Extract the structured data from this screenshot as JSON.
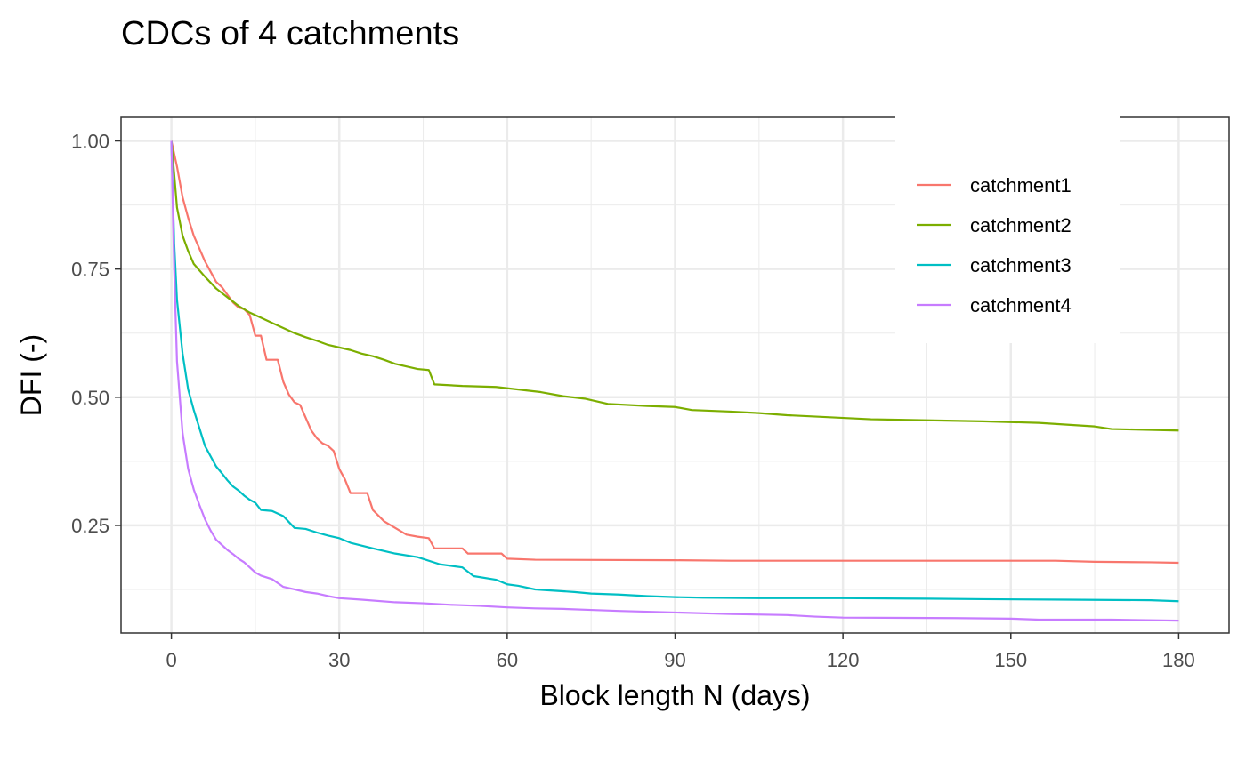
{
  "chart_data": {
    "type": "line",
    "title": "CDCs of 4 catchments",
    "xlabel": "Block length N (days)",
    "ylabel": "DFI (-)",
    "xlim": [
      -9,
      189
    ],
    "ylim": [
      0.04,
      1.046
    ],
    "xticks": [
      0,
      30,
      60,
      90,
      120,
      150,
      180
    ],
    "xtick_labels": [
      "0",
      "30",
      "60",
      "90",
      "120",
      "150",
      "180"
    ],
    "yticks": [
      0.25,
      0.5,
      0.75,
      1.0
    ],
    "ytick_labels": [
      "0.25",
      "0.50",
      "0.75",
      "1.00"
    ],
    "grid": true,
    "legend_position": "top-right inside",
    "series": [
      {
        "name": "catchment1",
        "color": "#F8766D",
        "x": [
          0,
          1,
          2,
          3,
          4,
          5,
          6,
          7,
          8,
          9,
          10,
          11,
          12,
          13,
          14,
          15,
          16,
          17,
          18,
          19,
          20,
          21,
          22,
          23,
          24,
          25,
          26,
          27,
          28,
          29,
          30,
          31,
          32,
          35,
          36,
          38,
          40,
          42,
          44,
          46,
          47,
          52,
          53,
          59,
          60,
          65,
          90,
          100,
          158,
          165,
          175,
          180
        ],
        "y": [
          1.0,
          0.95,
          0.89,
          0.85,
          0.815,
          0.79,
          0.765,
          0.745,
          0.725,
          0.715,
          0.7,
          0.685,
          0.675,
          0.672,
          0.66,
          0.62,
          0.62,
          0.573,
          0.573,
          0.573,
          0.53,
          0.505,
          0.49,
          0.485,
          0.46,
          0.435,
          0.42,
          0.41,
          0.405,
          0.395,
          0.36,
          0.34,
          0.313,
          0.313,
          0.28,
          0.258,
          0.245,
          0.232,
          0.228,
          0.225,
          0.205,
          0.205,
          0.195,
          0.195,
          0.185,
          0.183,
          0.182,
          0.181,
          0.181,
          0.179,
          0.178,
          0.177
        ]
      },
      {
        "name": "catchment2",
        "color": "#7CAE00",
        "x": [
          0,
          1,
          2,
          3,
          4,
          6,
          8,
          10,
          12,
          14,
          16,
          18,
          20,
          22,
          24,
          26,
          28,
          30,
          32,
          34,
          36,
          38,
          40,
          42,
          44,
          46,
          47,
          52,
          58,
          62,
          66,
          70,
          74,
          78,
          85,
          90,
          93,
          100,
          105,
          110,
          125,
          145,
          155,
          165,
          168,
          180
        ],
        "y": [
          1.0,
          0.87,
          0.815,
          0.785,
          0.76,
          0.735,
          0.712,
          0.695,
          0.678,
          0.665,
          0.655,
          0.645,
          0.635,
          0.625,
          0.617,
          0.61,
          0.602,
          0.597,
          0.592,
          0.585,
          0.58,
          0.573,
          0.565,
          0.56,
          0.555,
          0.553,
          0.525,
          0.522,
          0.52,
          0.515,
          0.51,
          0.502,
          0.497,
          0.487,
          0.483,
          0.481,
          0.475,
          0.472,
          0.469,
          0.465,
          0.457,
          0.453,
          0.45,
          0.443,
          0.438,
          0.435
        ]
      },
      {
        "name": "catchment3",
        "color": "#00BFC4",
        "x": [
          0,
          0.5,
          1,
          2,
          3,
          4,
          5,
          6,
          7,
          8,
          9,
          10,
          11,
          12,
          13,
          14,
          15,
          16,
          18,
          20,
          22,
          24,
          26,
          28,
          30,
          32,
          36,
          40,
          44,
          48,
          52,
          54,
          58,
          60,
          62,
          65,
          72,
          75,
          80,
          85,
          90,
          95,
          105,
          120,
          135,
          145,
          160,
          175,
          180
        ],
        "y": [
          1.0,
          0.8,
          0.69,
          0.585,
          0.515,
          0.475,
          0.44,
          0.405,
          0.385,
          0.365,
          0.352,
          0.338,
          0.326,
          0.318,
          0.308,
          0.3,
          0.294,
          0.28,
          0.278,
          0.268,
          0.245,
          0.243,
          0.236,
          0.23,
          0.225,
          0.216,
          0.205,
          0.195,
          0.188,
          0.174,
          0.168,
          0.151,
          0.144,
          0.135,
          0.132,
          0.125,
          0.12,
          0.117,
          0.115,
          0.112,
          0.11,
          0.109,
          0.108,
          0.108,
          0.107,
          0.106,
          0.105,
          0.104,
          0.102
        ]
      },
      {
        "name": "catchment4",
        "color": "#C77CFF",
        "x": [
          0,
          0.5,
          1,
          2,
          3,
          4,
          5,
          6,
          7,
          8,
          9,
          10,
          11,
          12,
          13,
          14,
          15,
          16,
          18,
          20,
          22,
          24,
          26,
          28,
          30,
          34,
          40,
          45,
          50,
          55,
          60,
          65,
          70,
          75,
          80,
          90,
          100,
          110,
          115,
          120,
          140,
          150,
          155,
          168,
          180
        ],
        "y": [
          1.0,
          0.75,
          0.57,
          0.43,
          0.36,
          0.32,
          0.29,
          0.262,
          0.24,
          0.222,
          0.212,
          0.202,
          0.194,
          0.185,
          0.178,
          0.168,
          0.158,
          0.152,
          0.145,
          0.13,
          0.125,
          0.12,
          0.117,
          0.112,
          0.108,
          0.105,
          0.1,
          0.098,
          0.095,
          0.093,
          0.09,
          0.088,
          0.087,
          0.085,
          0.083,
          0.08,
          0.077,
          0.075,
          0.072,
          0.07,
          0.069,
          0.068,
          0.066,
          0.066,
          0.064
        ]
      }
    ]
  }
}
